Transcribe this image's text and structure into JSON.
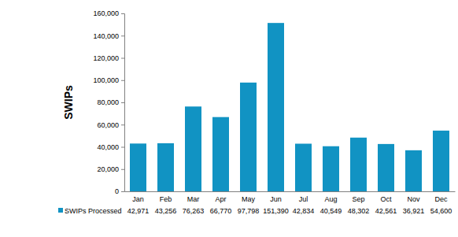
{
  "chart_data": {
    "type": "bar",
    "y_label": "SWIPs",
    "categories": [
      "Jan",
      "Feb",
      "Mar",
      "Apr",
      "May",
      "Jun",
      "Jul",
      "Aug",
      "Sep",
      "Oct",
      "Nov",
      "Dec"
    ],
    "series": [
      {
        "name": "SWIPs Processed",
        "color": "#1193c3",
        "values": [
          42971,
          43256,
          76263,
          66770,
          97798,
          151390,
          42834,
          40549,
          48302,
          42561,
          36921,
          54600
        ],
        "value_labels": [
          "42,971",
          "43,256",
          "76,263",
          "66,770",
          "97,798",
          "151,390",
          "42,834",
          "40,549",
          "48,302",
          "42,561",
          "36,921",
          "54,600"
        ]
      }
    ],
    "ylim": [
      0,
      160000
    ],
    "yticks": [
      0,
      {
        "value": 20000,
        "label": "20,000"
      },
      {
        "value": 40000,
        "label": "40,000"
      },
      {
        "value": 60000,
        "label": "60,000"
      },
      {
        "value": 80000,
        "label": "80,000"
      },
      {
        "value": 100000,
        "label": "100,000"
      },
      {
        "value": 120000,
        "label": "120,000"
      },
      {
        "value": 140000,
        "label": "140,000"
      },
      {
        "value": 160000,
        "label": "160,000"
      }
    ],
    "grid": false
  }
}
